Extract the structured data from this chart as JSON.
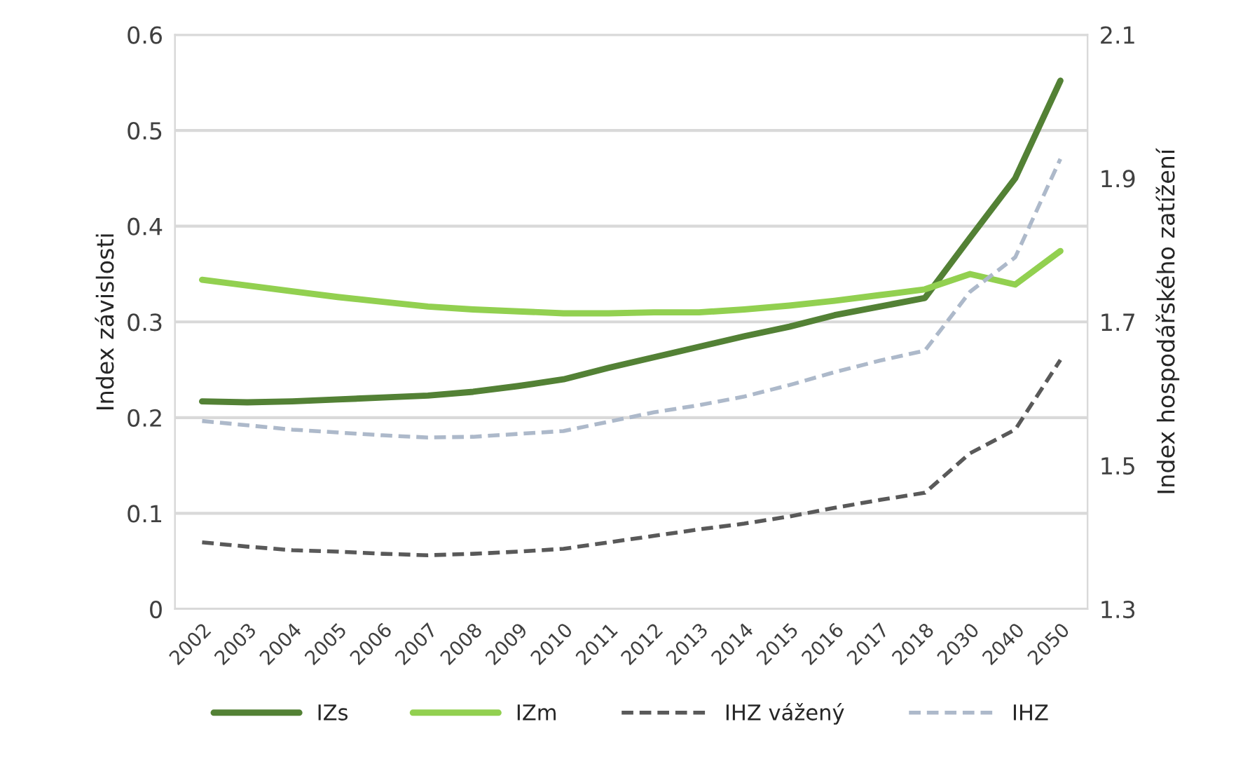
{
  "chart_data": {
    "type": "line",
    "categories": [
      "2002",
      "2003",
      "2004",
      "2005",
      "2006",
      "2007",
      "2008",
      "2009",
      "2010",
      "2011",
      "2012",
      "2013",
      "2014",
      "2015",
      "2016",
      "2017",
      "2018",
      "2030",
      "2040",
      "2050"
    ],
    "series": [
      {
        "name": "IZs",
        "color": "#538135",
        "line_style": "solid",
        "values": [
          0.217,
          0.216,
          0.217,
          0.219,
          0.221,
          0.223,
          0.227,
          0.233,
          0.24,
          0.252,
          0.263,
          0.274,
          0.285,
          0.295,
          0.307,
          0.316,
          0.325,
          0.388,
          0.45,
          0.552
        ]
      },
      {
        "name": "IZm",
        "color": "#92d050",
        "line_style": "solid",
        "values": [
          0.344,
          0.338,
          0.332,
          0.326,
          0.321,
          0.316,
          0.313,
          0.311,
          0.309,
          0.309,
          0.31,
          0.31,
          0.313,
          0.317,
          0.322,
          0.328,
          0.334,
          0.35,
          0.339,
          0.374
        ]
      },
      {
        "name": "IHZ vážený",
        "color": "#595959",
        "line_style": "dashed",
        "axis": "y2",
        "values": [
          1.393,
          1.387,
          1.382,
          1.38,
          1.377,
          1.375,
          1.377,
          1.38,
          1.384,
          1.393,
          1.402,
          1.411,
          1.419,
          1.429,
          1.441,
          1.452,
          1.462,
          1.517,
          1.55,
          1.647
        ]
      },
      {
        "name": "IHZ",
        "color": "#adb9ca",
        "line_style": "dashed",
        "axis": "y2",
        "values": [
          1.562,
          1.556,
          1.55,
          1.546,
          1.542,
          1.539,
          1.54,
          1.544,
          1.548,
          1.561,
          1.574,
          1.584,
          1.596,
          1.612,
          1.63,
          1.646,
          1.66,
          1.742,
          1.79,
          1.927
        ]
      }
    ],
    "ylabel": "Index závislosti",
    "y2label": "Index hospodářského zatížení",
    "ylim": [
      0,
      0.6
    ],
    "yticks": [
      {
        "value": 0,
        "label": "0"
      },
      0.1,
      0.2,
      0.3,
      0.4,
      0.5,
      0.6
    ],
    "y2lim": [
      1.3,
      2.1
    ],
    "y2ticks": [
      1.3,
      1.5,
      1.7,
      1.9,
      2.1
    ],
    "grid": "y",
    "legend": "bottom",
    "marker": "none"
  }
}
